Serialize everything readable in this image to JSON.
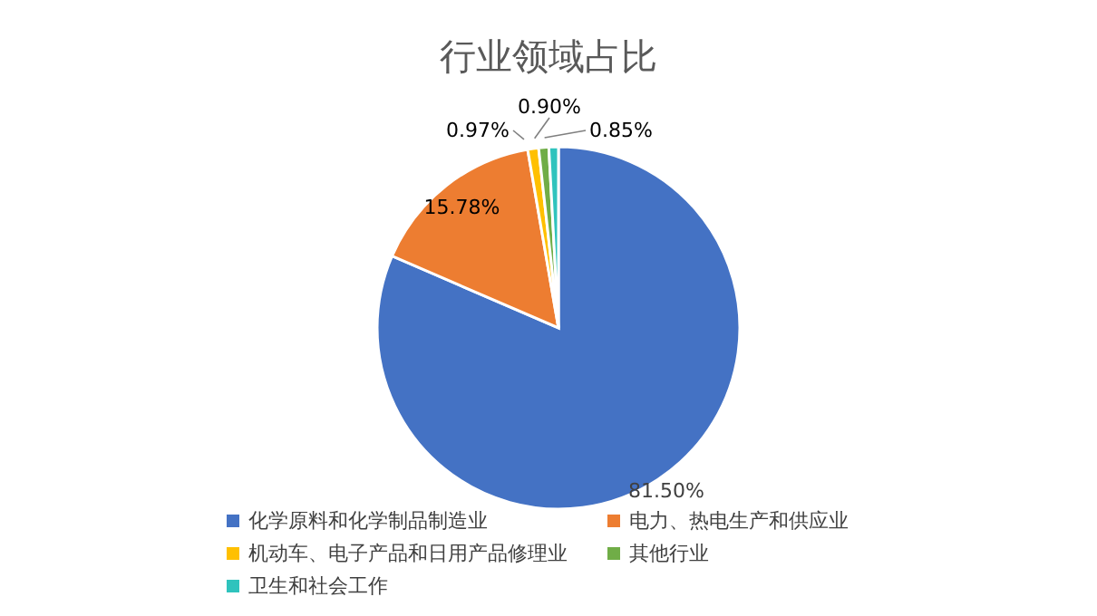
{
  "chart_data": {
    "type": "pie",
    "title": "行业领域占比",
    "categories": [
      "化学原料和化学制品制造业",
      "电力、热电生产和供应业",
      "机动车、电子产品和日用产品修理业",
      "其他行业",
      "卫生和社会工作"
    ],
    "values": [
      81.5,
      15.78,
      0.97,
      0.9,
      0.85
    ],
    "colors": [
      "#4472c4",
      "#ed7d31",
      "#ffc000",
      "#70ad47",
      "#2fc3bd"
    ],
    "value_labels": [
      "81.50%",
      "15.78%",
      "0.97%",
      "0.90%",
      "0.85%"
    ],
    "legend": "bottom"
  }
}
